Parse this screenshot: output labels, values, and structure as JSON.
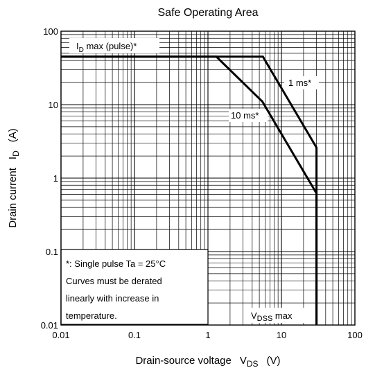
{
  "chart_data": {
    "type": "line",
    "title": "Safe Operating Area",
    "xlabel": {
      "main": "Drain-source voltage",
      "symbol": "V",
      "subscript": "DS",
      "unit": "(V)"
    },
    "ylabel": {
      "main": "Drain current",
      "symbol": "I",
      "subscript": "D",
      "unit": "(A)"
    },
    "x_scale": "log",
    "y_scale": "log",
    "xlim": [
      0.01,
      100
    ],
    "ylim": [
      0.01,
      100
    ],
    "x_ticks": [
      0.01,
      0.1,
      1,
      10,
      100
    ],
    "x_tick_labels": [
      "0.01",
      "0.1",
      "1",
      "10",
      "100"
    ],
    "y_ticks": [
      0.01,
      0.1,
      1,
      10,
      100
    ],
    "y_tick_labels": [
      "0.01",
      "0.1",
      "1",
      "10",
      "100"
    ],
    "grid": true,
    "series": [
      {
        "name": "1 ms*",
        "points": [
          [
            0.01,
            45
          ],
          [
            5.6,
            45
          ],
          [
            30,
            2.6
          ],
          [
            30,
            0.01
          ]
        ]
      },
      {
        "name": "10 ms*",
        "points": [
          [
            0.01,
            45
          ],
          [
            1.3,
            45
          ],
          [
            5.5,
            11
          ],
          [
            30,
            0.62
          ],
          [
            30,
            0.01
          ]
        ]
      }
    ],
    "annotations": {
      "id_max": {
        "symbol": "I",
        "subscript": "D",
        "text": " max (pulse)*"
      },
      "one_ms": "1 ms*",
      "ten_ms": "10 ms*",
      "vdss": {
        "symbol": "V",
        "subscript": "DSS",
        "text": " max"
      }
    },
    "note_lines": [
      "*:  Single pulse    Ta = 25°C",
      "Curves must be derated",
      "linearly with increase in",
      "temperature."
    ]
  }
}
